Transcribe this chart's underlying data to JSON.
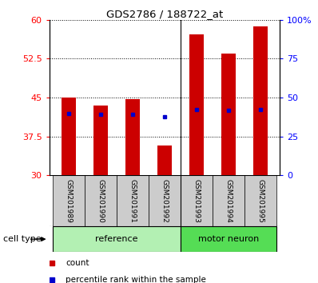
{
  "title": "GDS2786 / 188722_at",
  "samples": [
    "GSM201989",
    "GSM201990",
    "GSM201991",
    "GSM201992",
    "GSM201993",
    "GSM201994",
    "GSM201995"
  ],
  "groups": [
    {
      "label": "reference",
      "color": "#b3f0b3",
      "indices": [
        0,
        1,
        2,
        3
      ]
    },
    {
      "label": "motor neuron",
      "color": "#55dd55",
      "indices": [
        4,
        5,
        6
      ]
    }
  ],
  "count_values": [
    45.0,
    43.5,
    44.7,
    35.8,
    57.2,
    53.5,
    58.7
  ],
  "percentile_values": [
    40.0,
    39.5,
    39.3,
    37.7,
    42.5,
    42.0,
    42.5
  ],
  "baseline": 30.0,
  "ylim_left": [
    30,
    60
  ],
  "ylim_right": [
    0,
    100
  ],
  "yticks_left": [
    30,
    37.5,
    45,
    52.5,
    60
  ],
  "ytick_labels_left": [
    "30",
    "37.5",
    "45",
    "52.5",
    "60"
  ],
  "yticks_right": [
    0,
    25,
    50,
    75,
    100
  ],
  "ytick_labels_right": [
    "0",
    "25",
    "50",
    "75",
    "100%"
  ],
  "bar_color": "#cc0000",
  "dot_color": "#0000cc",
  "bar_width": 0.45,
  "sample_box_color": "#cccccc",
  "cell_type_label": "cell type",
  "legend_count": "count",
  "legend_percentile": "percentile rank within the sample",
  "ref_boundary": 3.5
}
